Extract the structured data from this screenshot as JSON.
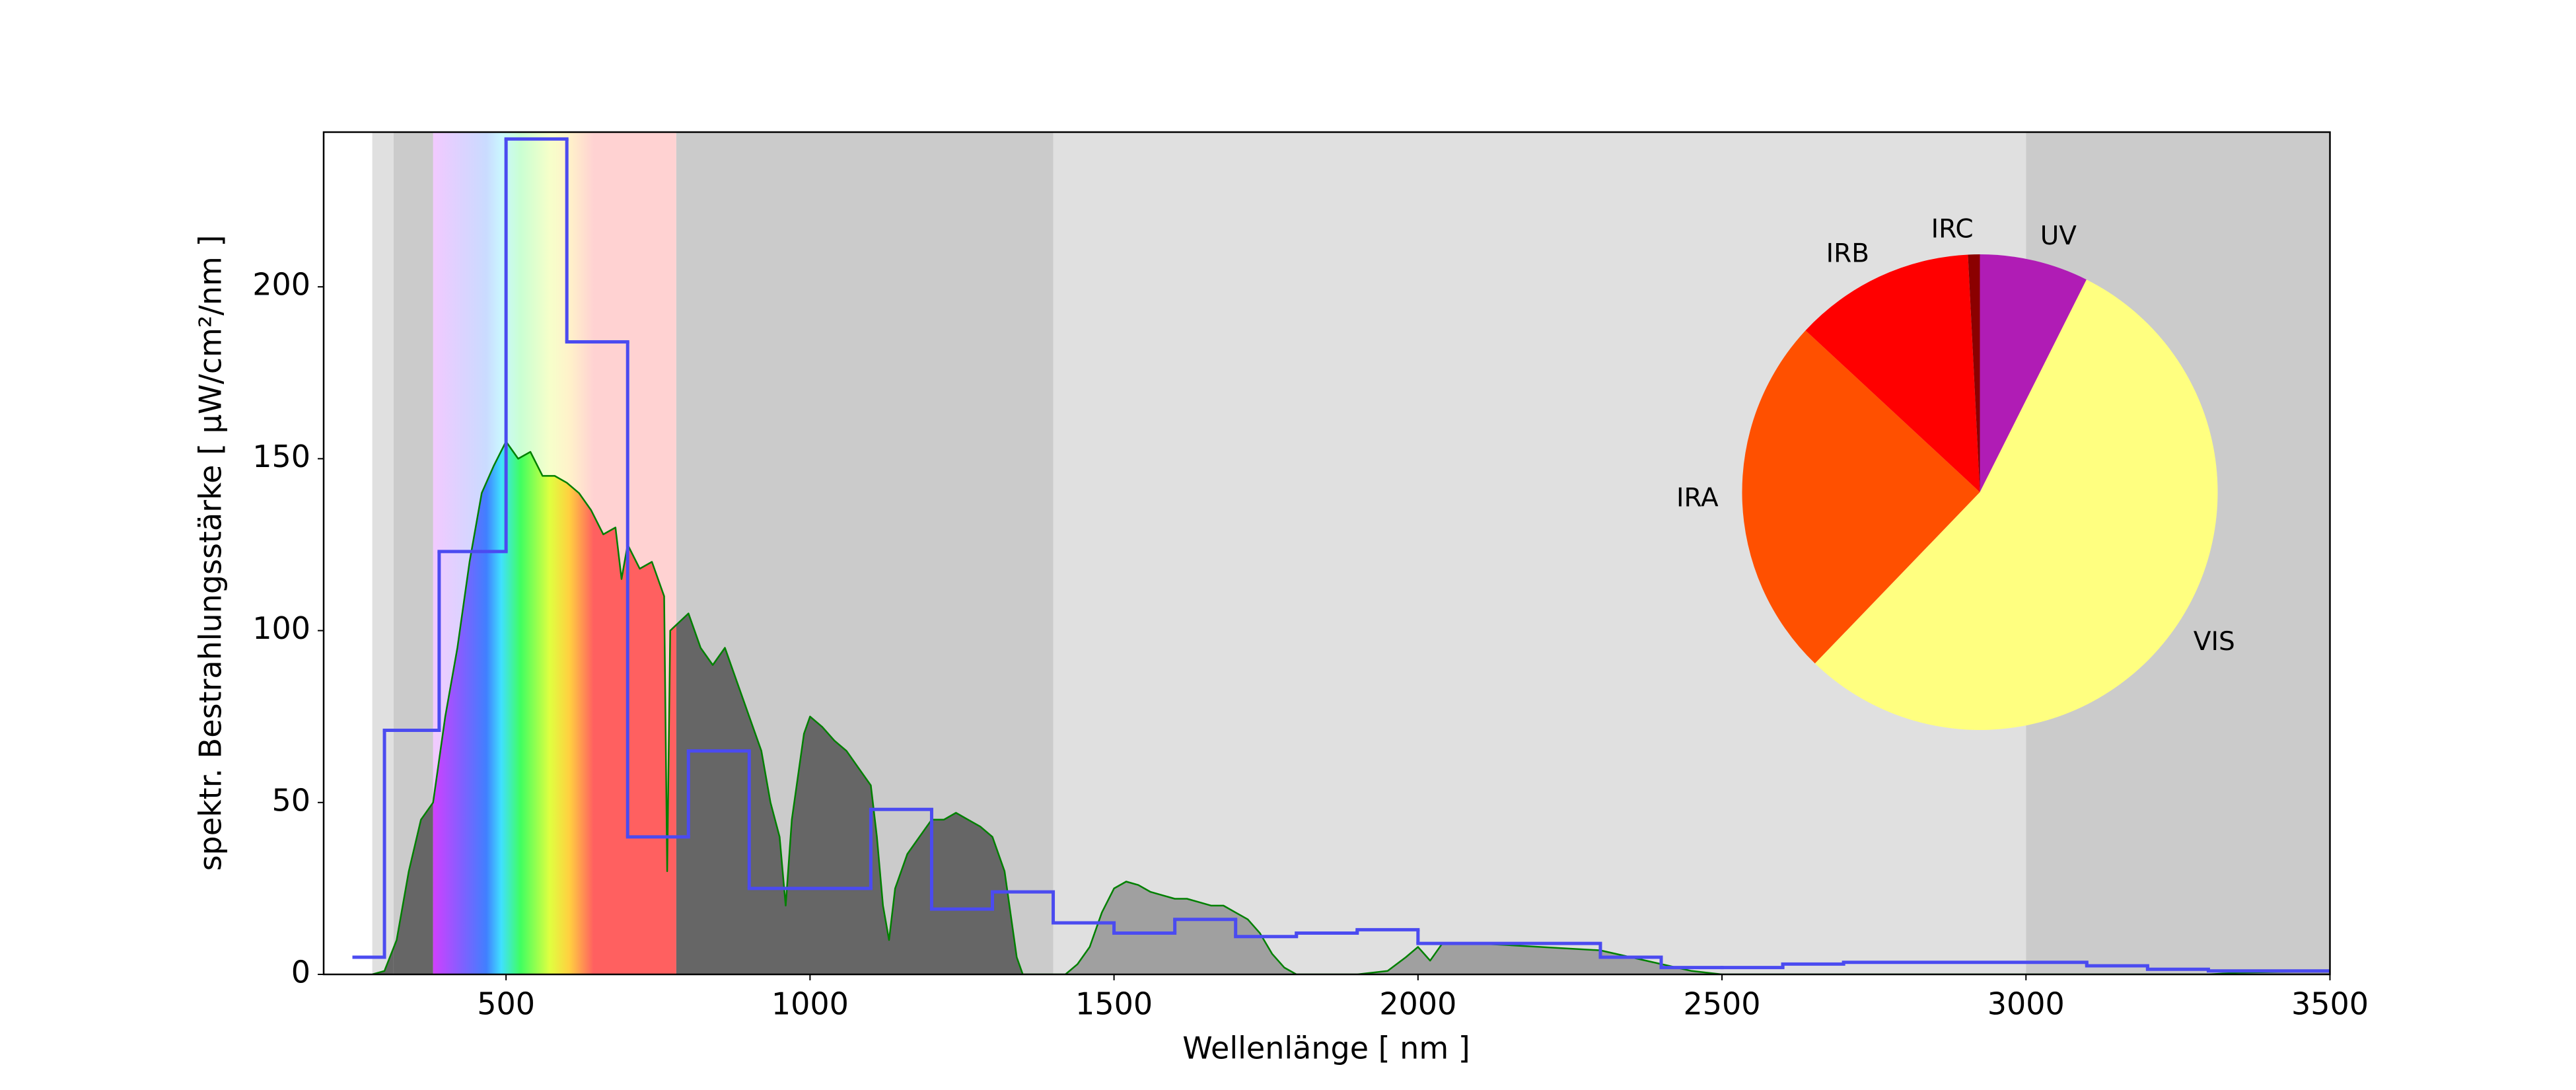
{
  "chart_data": [
    {
      "type": "line",
      "xlabel": "Wellenlänge  [ nm ]",
      "ylabel": "spektr. Bestrahlungsstärke  [ µW/cm²/nm ]",
      "xlim": [
        200,
        3500
      ],
      "ylim": [
        0,
        245
      ],
      "xticks": [
        500,
        1000,
        1500,
        2000,
        2500,
        3000,
        3500
      ],
      "yticks": [
        0,
        50,
        100,
        150,
        200
      ],
      "bands": [
        {
          "start": 280,
          "end": 315,
          "color": "#e0e0e0",
          "fill": "#666666"
        },
        {
          "start": 315,
          "end": 380,
          "color": "#cbcbcb",
          "fill": "#666666"
        },
        {
          "start": 380,
          "end": 780,
          "color": "spectrum",
          "fill": "spectrum"
        },
        {
          "start": 780,
          "end": 1400,
          "color": "#cbcbcb",
          "fill": "#666666"
        },
        {
          "start": 1400,
          "end": 3000,
          "color": "#e0e0e0",
          "fill": "#a0a0a0"
        },
        {
          "start": 3000,
          "end": 3500,
          "color": "#cbcbcb",
          "fill": "#a0a0a0"
        }
      ],
      "series": [
        {
          "color": "#008000",
          "fill": true,
          "x": [
            280,
            300,
            320,
            340,
            360,
            380,
            400,
            420,
            440,
            460,
            480,
            500,
            520,
            540,
            560,
            580,
            600,
            620,
            640,
            660,
            680,
            690,
            700,
            720,
            740,
            760,
            765,
            770,
            800,
            820,
            840,
            860,
            880,
            900,
            920,
            935,
            950,
            960,
            970,
            990,
            1000,
            1020,
            1040,
            1060,
            1080,
            1100,
            1110,
            1120,
            1130,
            1140,
            1160,
            1180,
            1200,
            1220,
            1240,
            1260,
            1280,
            1300,
            1320,
            1340,
            1350,
            1400,
            1420,
            1440,
            1460,
            1480,
            1500,
            1520,
            1540,
            1560,
            1580,
            1600,
            1620,
            1640,
            1660,
            1680,
            1700,
            1720,
            1740,
            1760,
            1780,
            1800,
            1900,
            1950,
            1980,
            2000,
            2020,
            2040,
            2080,
            2100,
            2200,
            2300,
            2350,
            2400,
            2450,
            2500,
            3000,
            3300,
            3350,
            3500
          ],
          "values": [
            0,
            1,
            10,
            30,
            45,
            50,
            75,
            95,
            120,
            140,
            148,
            155,
            150,
            152,
            145,
            145,
            143,
            140,
            135,
            128,
            130,
            115,
            125,
            118,
            120,
            110,
            30,
            100,
            105,
            95,
            90,
            95,
            85,
            75,
            65,
            50,
            40,
            20,
            45,
            70,
            75,
            72,
            68,
            65,
            60,
            55,
            40,
            20,
            10,
            25,
            35,
            40,
            45,
            45,
            47,
            45,
            43,
            40,
            30,
            5,
            0,
            0,
            0,
            3,
            8,
            18,
            25,
            27,
            26,
            24,
            23,
            22,
            22,
            21,
            20,
            20,
            18,
            16,
            12,
            6,
            2,
            0,
            0,
            1,
            5,
            8,
            4,
            9,
            9,
            9,
            8,
            7,
            5,
            3,
            1,
            0,
            0,
            0,
            0.5,
            1
          ]
        },
        {
          "color": "#4b4bf0",
          "step": true,
          "bins": [
            250,
            300,
            390,
            500,
            600,
            700,
            800,
            900,
            1100,
            1200,
            1300,
            1400,
            1500,
            1600,
            1700,
            1800,
            1900,
            2000,
            2300,
            2400,
            2500,
            2600,
            2700,
            3100,
            3200,
            3300,
            3500
          ],
          "values": [
            5,
            71,
            123,
            243,
            184,
            40,
            65,
            25,
            48,
            19,
            24,
            15,
            12,
            16,
            11,
            12,
            13,
            9,
            5,
            2,
            2,
            3,
            3.5,
            2.5,
            1.5,
            1
          ]
        }
      ]
    },
    {
      "type": "pie",
      "counterclock": false,
      "startangle": 90,
      "labels": [
        "UV",
        "VIS",
        "IRA",
        "IRB",
        "IRC"
      ],
      "values": [
        7.4,
        54.8,
        24.7,
        12.3,
        0.8
      ],
      "colors": [
        "#b01cb5",
        "#ffff80",
        "#ff5000",
        "#ff0000",
        "#8b0000"
      ]
    }
  ]
}
